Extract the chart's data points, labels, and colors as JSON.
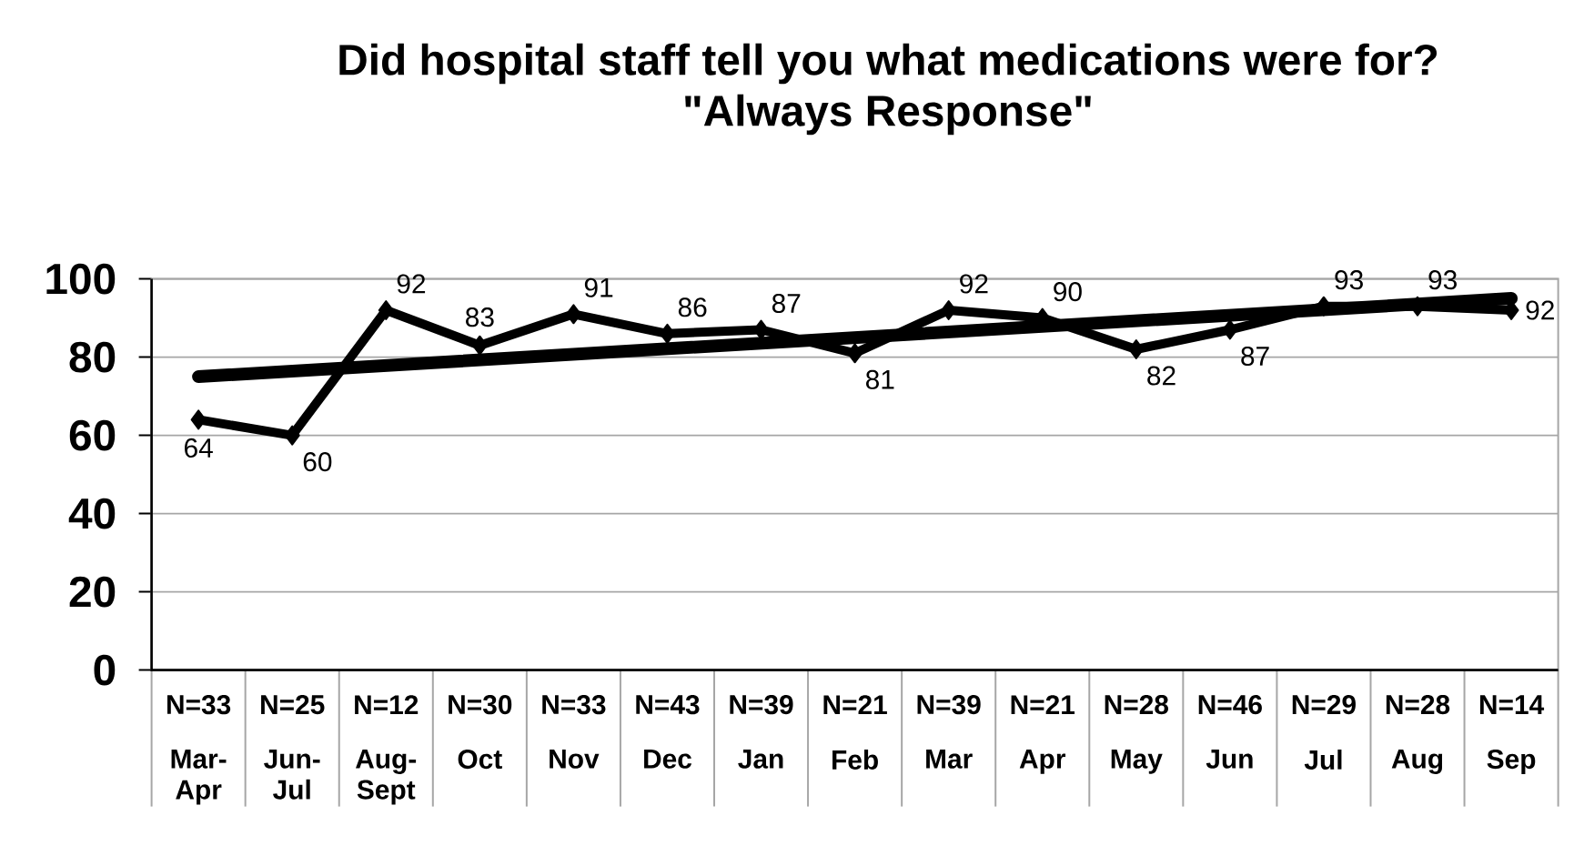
{
  "chart_data": {
    "type": "line",
    "title": "Did hospital staff tell you what medications were for?",
    "subtitle": "\"Always Response\"",
    "categories": [
      "Mar-Apr",
      "Jun-Jul",
      "Aug-Sept",
      "Oct",
      "Nov",
      "Dec",
      "Jan",
      "Feb",
      "Mar",
      "Apr",
      "May",
      "Jun",
      "Jul",
      "Aug",
      "Sep"
    ],
    "series": [
      {
        "color": "#000000",
        "marker": "diamond",
        "values": [
          64,
          60,
          92,
          83,
          91,
          86,
          87,
          81,
          92,
          90,
          82,
          87,
          93,
          93,
          92
        ],
        "value_labels": [
          "64",
          "60",
          "92",
          "83",
          "91",
          "86",
          "87",
          "81",
          "92",
          "90",
          "82",
          "87",
          "93",
          "93",
          "92"
        ]
      },
      {
        "type": "line",
        "color": "#000000",
        "x": [
          "Mar-Apr",
          "Sep"
        ],
        "values": [
          75,
          95
        ]
      }
    ],
    "annotations": [
      "N=33",
      "N=25",
      "N=12",
      "N=30",
      "N=33",
      "N=43",
      "N=39",
      "N=21",
      "N=39",
      "N=21",
      "N=28",
      "N=46",
      "N=29",
      "N=28",
      "N=14"
    ],
    "ylim": [
      0,
      100
    ],
    "yticks": [
      0,
      20,
      40,
      60,
      80,
      100
    ],
    "grid": "y"
  }
}
